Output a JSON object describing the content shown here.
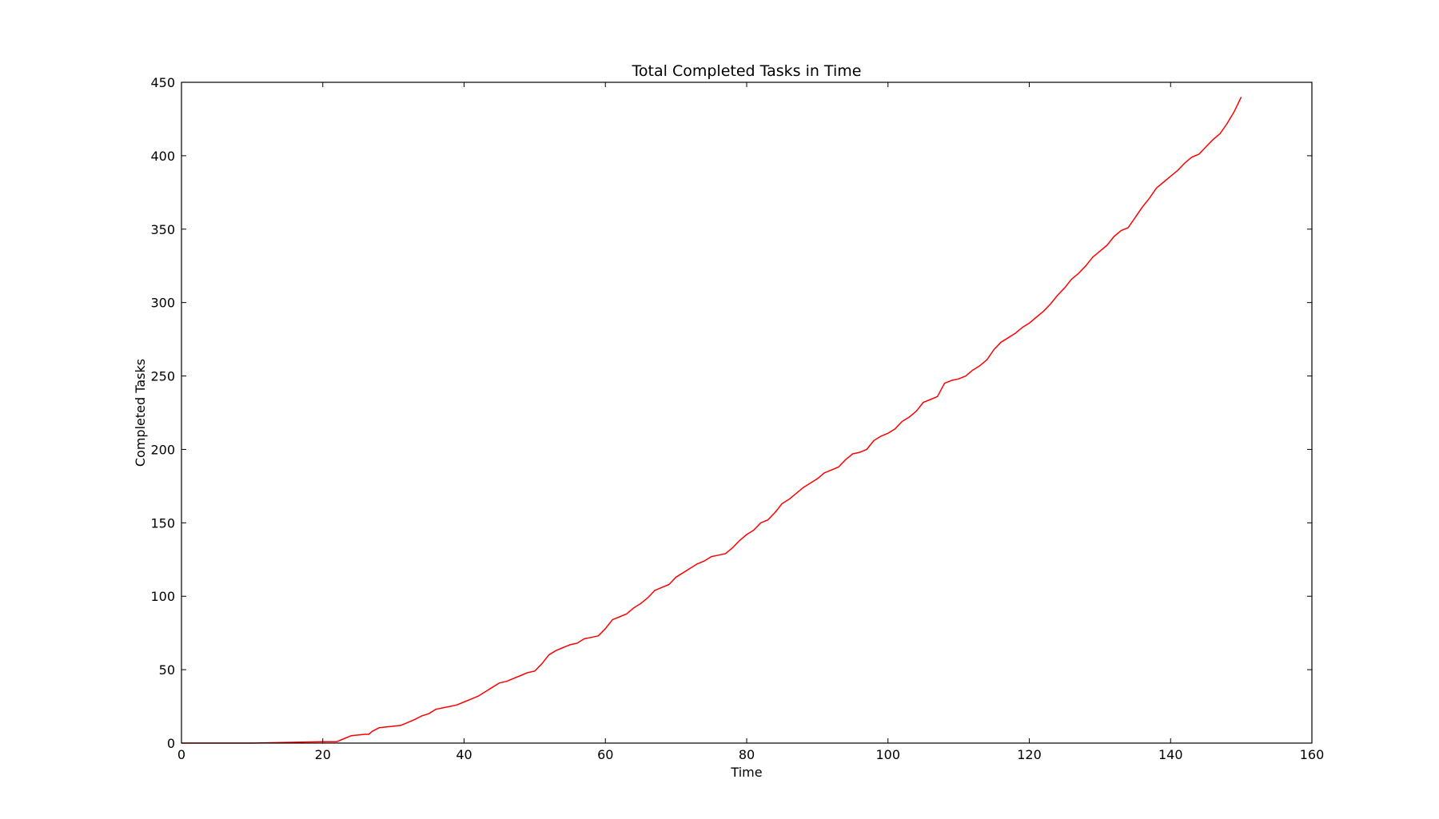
{
  "chart_data": {
    "type": "line",
    "title": "Total Completed Tasks in Time",
    "xlabel": "Time",
    "ylabel": "Completed Tasks",
    "xlim": [
      0,
      160
    ],
    "ylim": [
      0,
      450
    ],
    "xticks": [
      0,
      20,
      40,
      60,
      80,
      100,
      120,
      140,
      160
    ],
    "yticks": [
      0,
      50,
      100,
      150,
      200,
      250,
      300,
      350,
      400,
      450
    ],
    "grid": false,
    "legend": "none",
    "series": [
      {
        "color": "#ff0000",
        "x": [
          0,
          5,
          10,
          15,
          20,
          21.5,
          22,
          23,
          24,
          25,
          26,
          26.5,
          27,
          28,
          29,
          30,
          31,
          32,
          33,
          34,
          35,
          36,
          37,
          38,
          39,
          40,
          41,
          42,
          43,
          44,
          45,
          46,
          47,
          48,
          49,
          50,
          51,
          52,
          53,
          54,
          55,
          56,
          57,
          58,
          59,
          60,
          61,
          62,
          63,
          64,
          65,
          66,
          67,
          68,
          69,
          70,
          71,
          72,
          73,
          74,
          75,
          76,
          77,
          78,
          79,
          80,
          81,
          82,
          83,
          84,
          85,
          86,
          87,
          88,
          89,
          90,
          91,
          92,
          93,
          94,
          95,
          96,
          97,
          98,
          99,
          100,
          101,
          102,
          103,
          104,
          105,
          106,
          107,
          108,
          109,
          110,
          111,
          112,
          113,
          114,
          115,
          116,
          117,
          118,
          119,
          120,
          121,
          122,
          123,
          124,
          125,
          126,
          127,
          128,
          129,
          130,
          131,
          132,
          133,
          134,
          135,
          136,
          137,
          138,
          139,
          140,
          141,
          142,
          143,
          144,
          145,
          146,
          147,
          148,
          149,
          150
        ],
        "y": [
          0,
          0,
          0,
          0.5,
          1,
          1,
          1,
          3,
          5,
          5.5,
          6,
          6,
          8,
          10.5,
          11,
          11.5,
          12,
          14,
          16,
          18.5,
          20,
          23,
          24,
          25,
          26,
          28,
          30,
          32,
          35,
          38,
          41,
          42,
          44,
          46,
          48,
          49,
          54,
          60,
          63,
          65,
          67,
          68,
          71,
          72,
          73,
          78,
          84,
          86,
          88,
          92,
          95,
          99,
          104,
          106,
          108,
          113,
          116,
          119,
          122,
          124,
          127,
          128,
          129,
          133,
          138,
          142,
          145,
          150,
          152,
          157,
          163,
          166,
          170,
          174,
          177,
          180,
          184,
          186,
          188,
          193,
          197,
          198,
          200,
          206,
          209,
          211,
          214,
          219,
          222,
          226,
          232,
          234,
          236,
          245,
          247,
          248,
          250,
          254,
          257,
          261,
          268,
          273,
          276,
          279,
          283,
          286,
          290,
          294,
          299,
          305,
          310,
          316,
          320,
          325,
          331,
          335,
          339,
          345,
          349,
          351,
          358,
          365,
          371,
          378,
          382,
          386,
          390,
          395,
          399,
          401,
          406,
          411,
          415,
          422,
          430,
          440
        ]
      }
    ]
  }
}
